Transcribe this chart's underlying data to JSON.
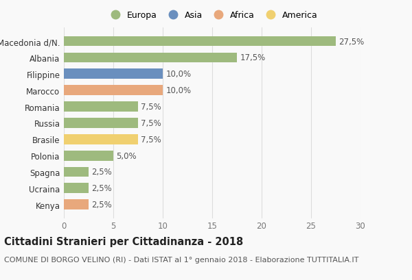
{
  "categories": [
    "Kenya",
    "Ucraina",
    "Spagna",
    "Polonia",
    "Brasile",
    "Russia",
    "Romania",
    "Marocco",
    "Filippine",
    "Albania",
    "Macedonia d/N."
  ],
  "values": [
    2.5,
    2.5,
    2.5,
    5.0,
    7.5,
    7.5,
    7.5,
    10.0,
    10.0,
    17.5,
    27.5
  ],
  "colors": [
    "#e8a87c",
    "#9eba7e",
    "#9eba7e",
    "#9eba7e",
    "#f0d070",
    "#9eba7e",
    "#9eba7e",
    "#e8a87c",
    "#6a8fbe",
    "#9eba7e",
    "#9eba7e"
  ],
  "bar_labels": [
    "2,5%",
    "2,5%",
    "2,5%",
    "5,0%",
    "7,5%",
    "7,5%",
    "7,5%",
    "10,0%",
    "10,0%",
    "17,5%",
    "27,5%"
  ],
  "legend_labels": [
    "Europa",
    "Asia",
    "Africa",
    "America"
  ],
  "legend_colors": [
    "#9eba7e",
    "#6a8fbe",
    "#e8a87c",
    "#f0d070"
  ],
  "xlim": [
    0,
    30
  ],
  "xticks": [
    0,
    5,
    10,
    15,
    20,
    25,
    30
  ],
  "title": "Cittadini Stranieri per Cittadinanza - 2018",
  "subtitle": "COMUNE DI BORGO VELINO (RI) - Dati ISTAT al 1° gennaio 2018 - Elaborazione TUTTITALIA.IT",
  "background_color": "#f9f9f9",
  "grid_color": "#dddddd",
  "title_fontsize": 10.5,
  "subtitle_fontsize": 8,
  "label_fontsize": 8.5,
  "tick_fontsize": 8.5,
  "legend_fontsize": 9
}
